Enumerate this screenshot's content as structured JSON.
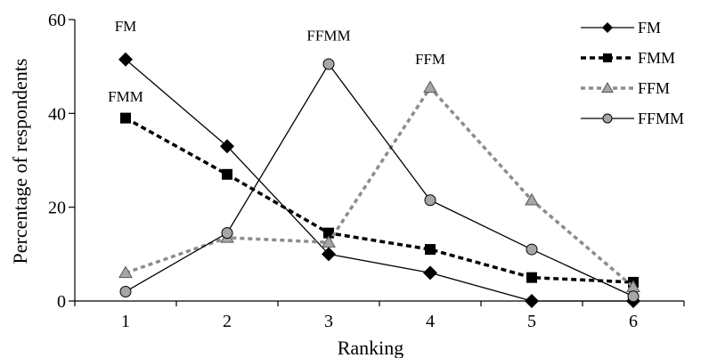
{
  "chart_data": {
    "type": "line",
    "xlabel": "Ranking",
    "ylabel": "Percentage of respondents",
    "x": [
      1,
      2,
      3,
      4,
      5,
      6
    ],
    "xlim": [
      0.5,
      6.5
    ],
    "ylim": [
      0,
      60
    ],
    "yticks": [
      0,
      20,
      40,
      60
    ],
    "grid": false,
    "legend_position": "top-right",
    "series": [
      {
        "name": "FM",
        "values": [
          51.5,
          33,
          10,
          6,
          0,
          0
        ],
        "color": "#000000",
        "line": "solid",
        "marker": "diamond"
      },
      {
        "name": "FMM",
        "values": [
          39,
          27,
          14.5,
          11,
          5,
          4
        ],
        "color": "#000000",
        "line": "dashed-bold",
        "marker": "square"
      },
      {
        "name": "FFM",
        "values": [
          6,
          13.5,
          12.5,
          45.5,
          21.5,
          3
        ],
        "color": "#8c8c8c",
        "line": "dashed-grey",
        "marker": "triangle"
      },
      {
        "name": "FFMM",
        "values": [
          2,
          14.5,
          50.5,
          21.5,
          11,
          1
        ],
        "color": "#000000",
        "line": "solid",
        "marker": "circle"
      }
    ],
    "annotations": [
      {
        "text": "FM",
        "x": 1,
        "y": 57.5
      },
      {
        "text": "FMM",
        "x": 1,
        "y": 42.5
      },
      {
        "text": "FFMM",
        "x": 3,
        "y": 55.5
      },
      {
        "text": "FFM",
        "x": 4,
        "y": 50.5
      }
    ]
  }
}
